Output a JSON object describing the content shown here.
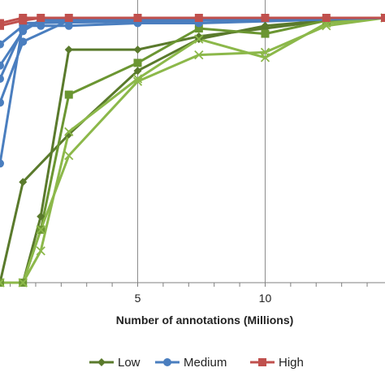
{
  "chart_data": {
    "type": "line",
    "title": "",
    "xlabel": "Number of annotations (Millions)",
    "ylabel": "",
    "xlim": [
      -0.4,
      14.7
    ],
    "ylim": [
      0,
      1.0
    ],
    "x_ticks": [
      "5",
      "10"
    ],
    "x_tick_values": [
      5,
      10
    ],
    "grid": "vertical",
    "legend_position": "bottom",
    "series": [
      {
        "name": "Low",
        "color": "#5a7a2c",
        "marker": "diamond",
        "lines": [
          {
            "x": [
              -0.4,
              0.5,
              2.3,
              5.0,
              7.4,
              10.0,
              12.4,
              14.7
            ],
            "y": [
              0.0,
              0.38,
              0.56,
              0.8,
              0.92,
              0.97,
              0.99,
              1.0
            ]
          },
          {
            "x": [
              -0.4,
              0.5,
              1.2,
              2.3,
              5.0,
              7.4,
              10.0,
              12.4,
              14.7
            ],
            "y": [
              0.0,
              0.0,
              0.25,
              0.88,
              0.88,
              0.93,
              0.96,
              0.99,
              1.0
            ]
          }
        ]
      },
      {
        "name": "",
        "color": "#6b9632",
        "marker": "square",
        "lines": [
          {
            "x": [
              -0.4,
              0.5,
              1.2,
              2.3,
              5.0,
              7.4,
              10.0,
              12.4,
              14.7
            ],
            "y": [
              0.0,
              0.0,
              0.2,
              0.71,
              0.83,
              0.96,
              0.94,
              0.99,
              1.0
            ]
          }
        ]
      },
      {
        "name": "",
        "color": "#8cb84a",
        "marker": "x",
        "lines": [
          {
            "x": [
              -0.4,
              0.5,
              1.2,
              2.3,
              5.0,
              7.4,
              10.0,
              12.4,
              14.7
            ],
            "y": [
              0.0,
              0.0,
              0.2,
              0.48,
              0.76,
              0.86,
              0.87,
              0.97,
              1.0
            ]
          },
          {
            "x": [
              -0.4,
              0.5,
              1.2,
              2.3,
              5.0,
              7.4,
              10.0,
              12.4,
              14.7
            ],
            "y": [
              0.0,
              0.0,
              0.12,
              0.57,
              0.77,
              0.92,
              0.85,
              0.98,
              1.0
            ]
          }
        ]
      },
      {
        "name": "Medium",
        "color": "#4a7ebf",
        "marker": "circle",
        "lines": [
          {
            "x": [
              -0.4,
              0.5,
              1.2,
              2.3,
              5.0,
              7.4,
              14.7
            ],
            "y": [
              0.9,
              0.97,
              0.97,
              0.97,
              0.98,
              0.98,
              1.0
            ]
          },
          {
            "x": [
              -0.4,
              0.5,
              1.2,
              2.3,
              14.7
            ],
            "y": [
              0.82,
              0.95,
              0.99,
              1.0,
              1.0
            ]
          },
          {
            "x": [
              -0.4,
              0.5,
              1.2,
              14.7
            ],
            "y": [
              0.77,
              0.96,
              0.99,
              1.0
            ]
          },
          {
            "x": [
              -0.4,
              0.5,
              2.3,
              14.7
            ],
            "y": [
              0.68,
              0.91,
              0.99,
              1.0
            ]
          },
          {
            "x": [
              -0.4,
              0.5,
              14.7
            ],
            "y": [
              0.45,
              0.98,
              1.0
            ]
          }
        ]
      },
      {
        "name": "High",
        "color": "#c0504d",
        "marker": "square",
        "lines": [
          {
            "x": [
              -0.4,
              0.5,
              1.2,
              2.3,
              5.0,
              7.4,
              10.0,
              12.4,
              14.7
            ],
            "y": [
              0.97,
              0.99,
              1.0,
              1.0,
              1.0,
              1.0,
              1.0,
              1.0,
              1.0
            ]
          },
          {
            "x": [
              -0.4,
              0.5,
              14.7
            ],
            "y": [
              0.98,
              1.0,
              1.0
            ]
          }
        ]
      }
    ]
  }
}
